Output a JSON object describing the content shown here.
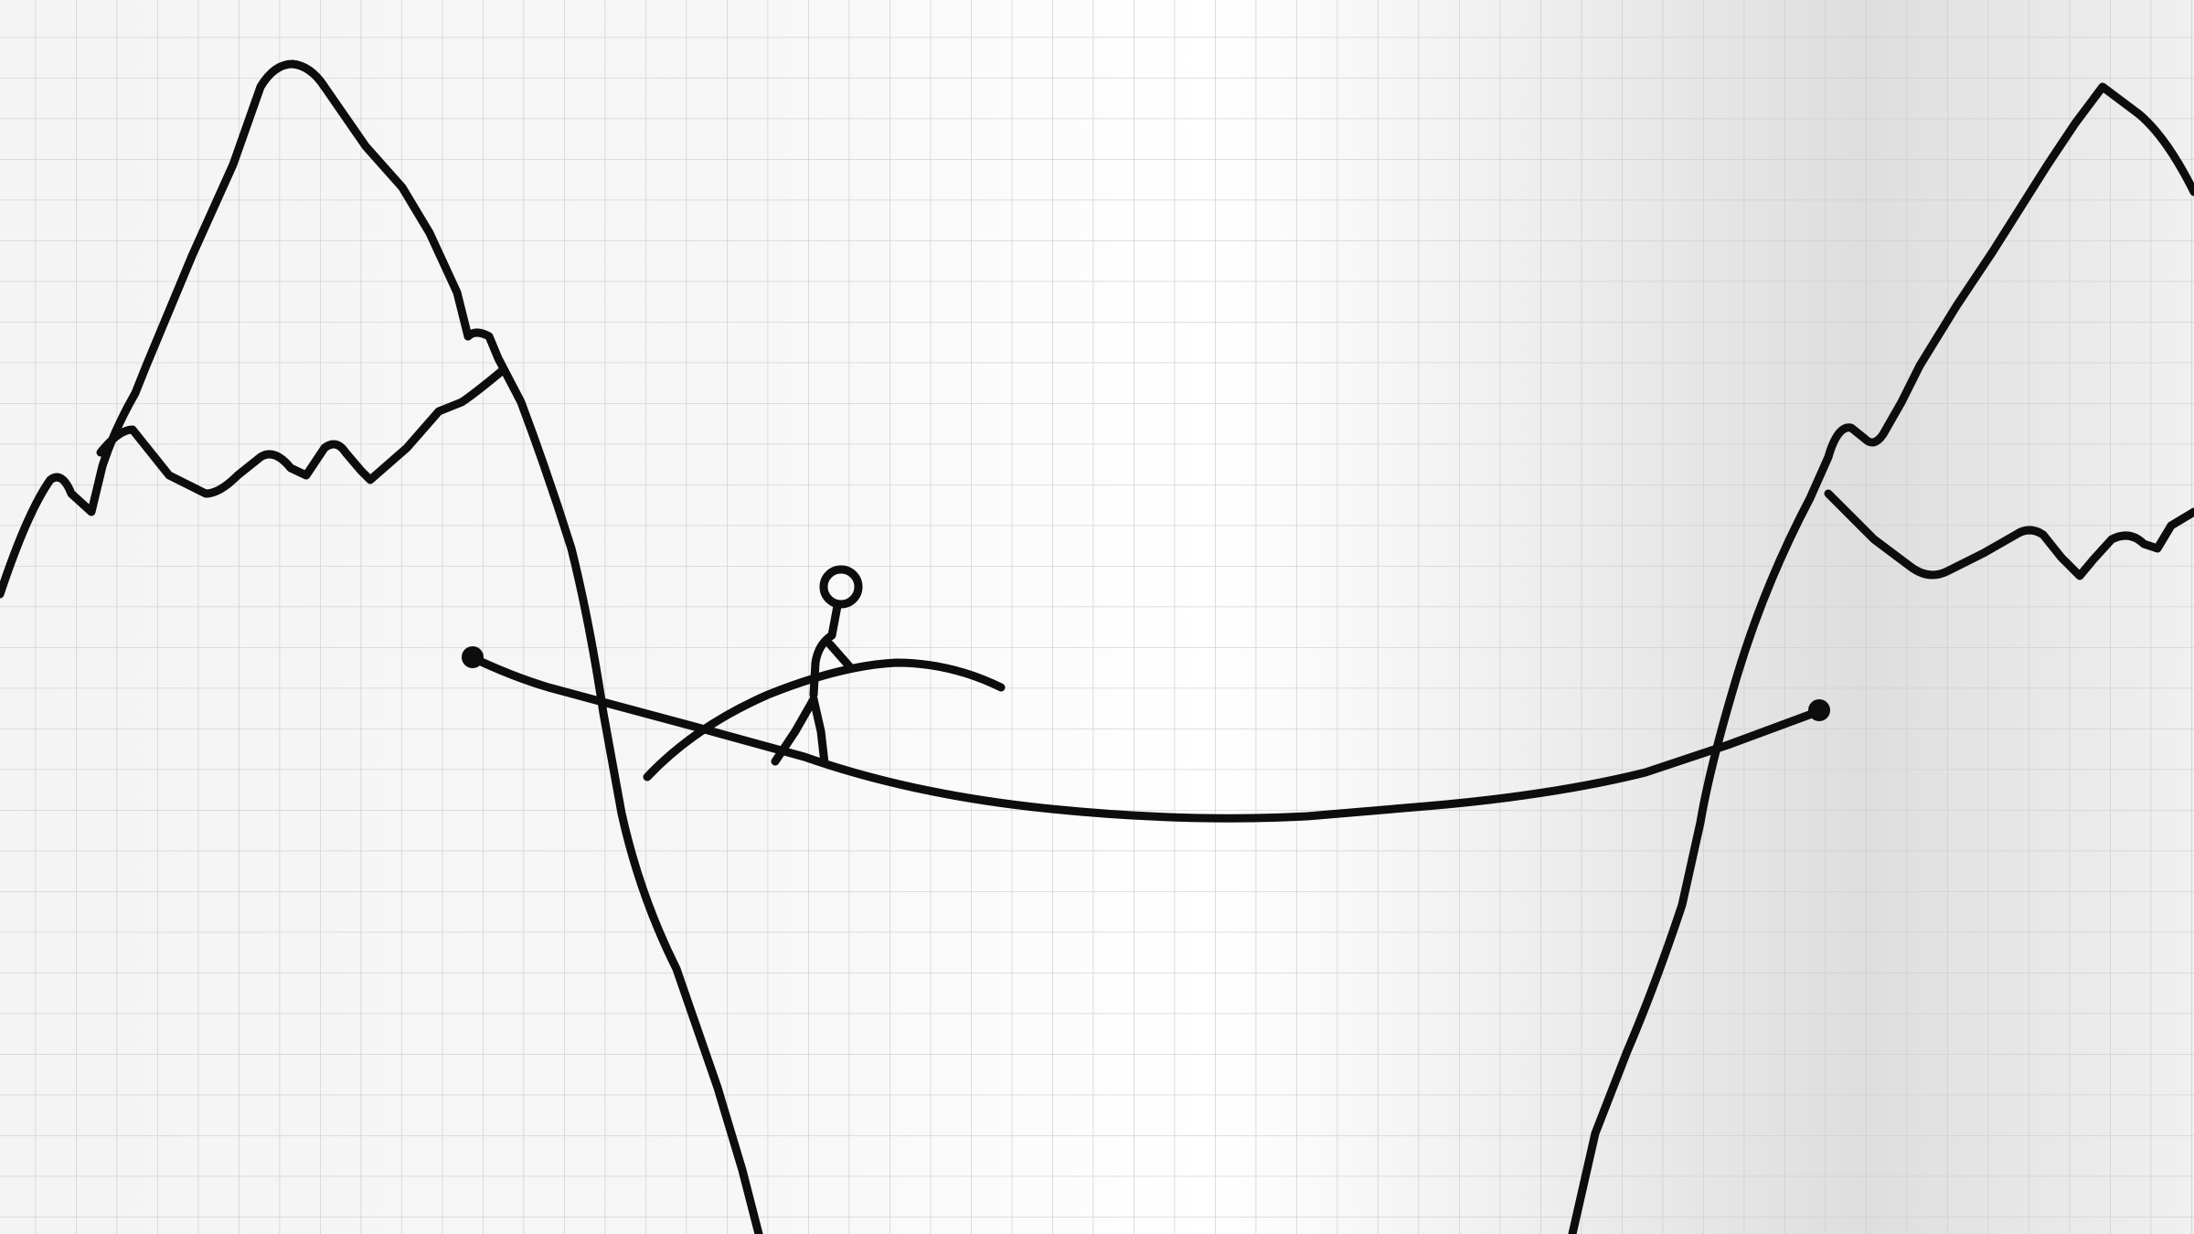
{
  "photo": {
    "subject": "hand-drawn-ink-sketch-on-grid-paper",
    "elements": [
      "left-mountain",
      "right-mountain",
      "tightrope",
      "stick-figure",
      "balance-pole"
    ]
  },
  "colors": {
    "paper_light": "#fbfbfb",
    "paper_mid": "#f0f0f0",
    "paper_shade": "#dcdcdc",
    "grid_line": "#c9cdd2",
    "ink": "#0d0d0d"
  },
  "grid": {
    "visible": true
  }
}
